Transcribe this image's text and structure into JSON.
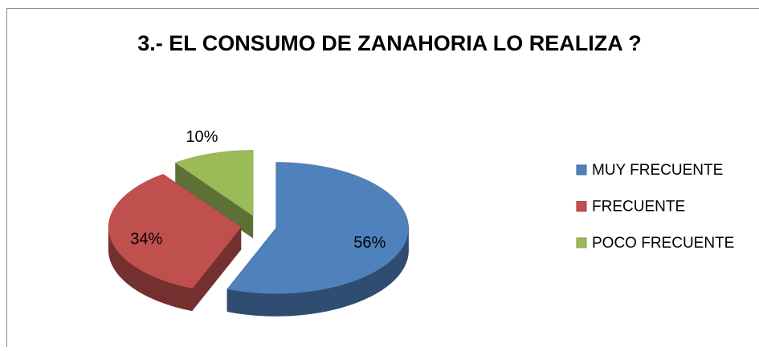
{
  "chart_data": {
    "type": "pie",
    "title": "3.- EL CONSUMO DE ZANAHORIA LO REALIZA ?",
    "categories": [
      "MUY FRECUENTE",
      "FRECUENTE",
      "POCO FRECUENTE"
    ],
    "values": [
      56,
      34,
      10
    ],
    "value_labels": [
      "56%",
      "34%",
      "10%"
    ],
    "colors": [
      "#4f81bd",
      "#c0504d",
      "#9bbb59"
    ],
    "legend": "right"
  }
}
